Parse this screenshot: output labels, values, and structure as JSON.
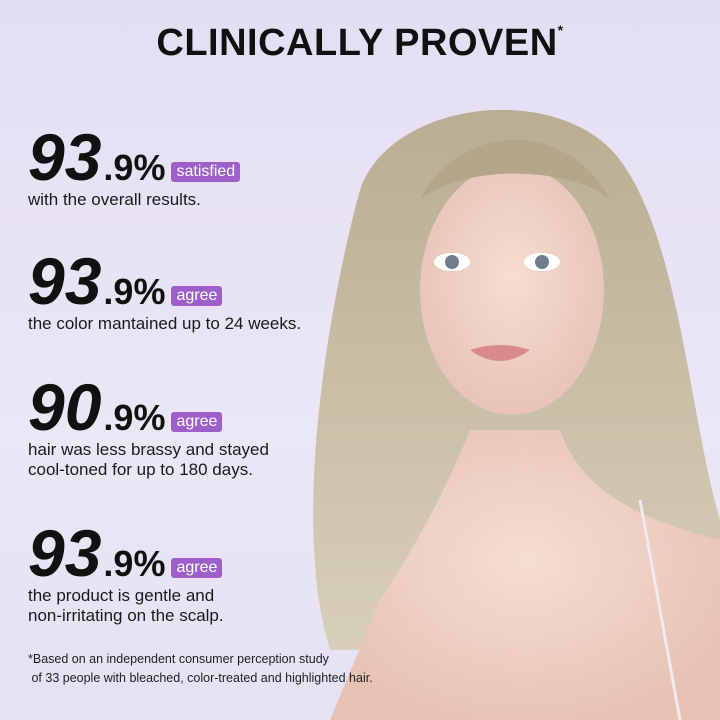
{
  "header": {
    "title": "CLINICALLY PROVEN",
    "mark": "*"
  },
  "stats": [
    {
      "whole": "93",
      "fraction": ".9%",
      "badge": "satisfied",
      "lines": [
        "with the overall results."
      ]
    },
    {
      "whole": "93",
      "fraction": ".9%",
      "badge": "agree",
      "lines": [
        "the color mantained up to 24 weeks."
      ]
    },
    {
      "whole": "90",
      "fraction": ".9%",
      "badge": "agree",
      "lines": [
        "hair was less brassy and stayed",
        "cool-toned for up to 180 days."
      ]
    },
    {
      "whole": "93",
      "fraction": ".9%",
      "badge": "agree",
      "lines": [
        "the product is gentle and",
        "non-irritating on the scalp."
      ]
    }
  ],
  "footnote": [
    "*Based on an independent consumer perception study",
    " of 33 people with bleached, color-treated and highlighted hair."
  ]
}
